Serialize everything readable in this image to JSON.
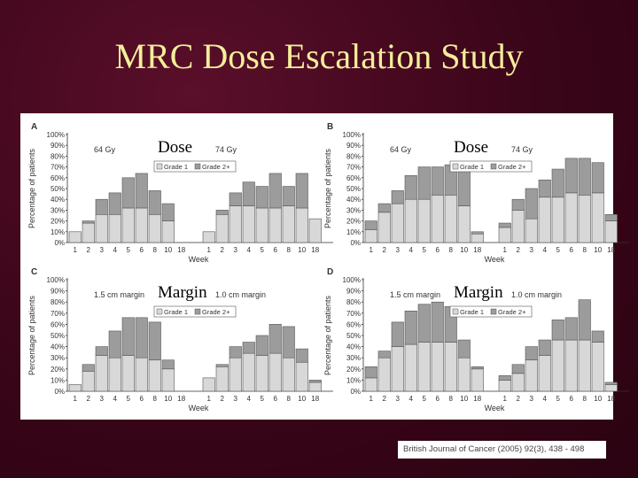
{
  "title": "MRC Dose Escalation Study",
  "citation": "British Journal of Cancer (2005) 92(3), 438 - 498",
  "legend_labels": [
    "Grade 1",
    "Grade 2+"
  ],
  "colors": {
    "grade1": "#d8d8d8",
    "grade2": "#9c9c9c"
  },
  "chart_data": [
    {
      "type": "bar",
      "panel": "A",
      "overlay": "Dose",
      "ylabel": "Percentage of patients",
      "xlabel": "Week",
      "ylim": [
        0,
        100
      ],
      "yticks": [
        "0%",
        "10%",
        "20%",
        "30%",
        "40%",
        "50%",
        "60%",
        "70%",
        "80%",
        "90%",
        "100%"
      ],
      "groups": [
        {
          "label": "64 Gy",
          "categories": [
            "1",
            "2",
            "3",
            "4",
            "5",
            "6",
            "8",
            "10",
            "18"
          ],
          "grade1": [
            10,
            18,
            26,
            26,
            32,
            32,
            26,
            20,
            0
          ],
          "grade2": [
            0,
            2,
            14,
            20,
            28,
            32,
            22,
            16,
            0
          ]
        },
        {
          "label": "74 Gy",
          "categories": [
            "1",
            "2",
            "3",
            "4",
            "5",
            "6",
            "8",
            "10",
            "18"
          ],
          "grade1": [
            10,
            26,
            34,
            34,
            32,
            32,
            34,
            32,
            22
          ],
          "grade2": [
            0,
            4,
            12,
            22,
            20,
            32,
            18,
            32,
            0
          ]
        }
      ]
    },
    {
      "type": "bar",
      "panel": "B",
      "overlay": "Dose",
      "ylabel": "Percentage of patients",
      "xlabel": "Week",
      "ylim": [
        0,
        100
      ],
      "yticks": [
        "0%",
        "10%",
        "20%",
        "30%",
        "40%",
        "50%",
        "60%",
        "70%",
        "80%",
        "90%",
        "100%"
      ],
      "groups": [
        {
          "label": "64 Gy",
          "categories": [
            "1",
            "2",
            "3",
            "4",
            "5",
            "6",
            "8",
            "10",
            "18"
          ],
          "grade1": [
            12,
            28,
            36,
            40,
            40,
            44,
            44,
            34,
            8
          ],
          "grade2": [
            8,
            8,
            12,
            22,
            30,
            26,
            28,
            34,
            2
          ]
        },
        {
          "label": "74 Gy",
          "categories": [
            "1",
            "2",
            "3",
            "4",
            "5",
            "6",
            "8",
            "10",
            "18"
          ],
          "grade1": [
            14,
            30,
            22,
            42,
            42,
            46,
            44,
            46,
            20
          ],
          "grade2": [
            4,
            10,
            28,
            16,
            26,
            32,
            34,
            28,
            6
          ]
        }
      ]
    },
    {
      "type": "bar",
      "panel": "C",
      "overlay": "Margin",
      "ylabel": "Percentage of patients",
      "xlabel": "Week",
      "ylim": [
        0,
        100
      ],
      "yticks": [
        "0%",
        "10%",
        "20%",
        "30%",
        "40%",
        "50%",
        "60%",
        "70%",
        "80%",
        "90%",
        "100%"
      ],
      "groups": [
        {
          "label": "1.5 cm margin",
          "categories": [
            "1",
            "2",
            "3",
            "4",
            "5",
            "6",
            "8",
            "10",
            "18"
          ],
          "grade1": [
            6,
            18,
            32,
            30,
            32,
            30,
            28,
            20,
            0
          ],
          "grade2": [
            0,
            6,
            8,
            24,
            34,
            36,
            34,
            8,
            0
          ]
        },
        {
          "label": "1.0 cm margin",
          "categories": [
            "1",
            "2",
            "3",
            "4",
            "5",
            "6",
            "8",
            "10",
            "18"
          ],
          "grade1": [
            12,
            22,
            30,
            34,
            32,
            34,
            30,
            26,
            8
          ],
          "grade2": [
            0,
            2,
            10,
            10,
            18,
            26,
            28,
            12,
            2
          ]
        }
      ]
    },
    {
      "type": "bar",
      "panel": "D",
      "overlay": "Margin",
      "ylabel": "Percentage of patients",
      "xlabel": "Week",
      "ylim": [
        0,
        100
      ],
      "yticks": [
        "0%",
        "10%",
        "20%",
        "30%",
        "40%",
        "50%",
        "60%",
        "70%",
        "80%",
        "90%",
        "100%"
      ],
      "groups": [
        {
          "label": "1.5 cm margin",
          "categories": [
            "1",
            "2",
            "3",
            "4",
            "5",
            "6",
            "8",
            "10",
            "18"
          ],
          "grade1": [
            12,
            30,
            40,
            42,
            44,
            44,
            44,
            30,
            20
          ],
          "grade2": [
            10,
            6,
            22,
            30,
            34,
            36,
            32,
            16,
            2
          ]
        },
        {
          "label": "1.0 cm margin",
          "categories": [
            "1",
            "2",
            "3",
            "4",
            "5",
            "6",
            "8",
            "10",
            "18"
          ],
          "grade1": [
            10,
            16,
            28,
            32,
            46,
            46,
            46,
            44,
            6
          ],
          "grade2": [
            4,
            8,
            12,
            14,
            18,
            20,
            36,
            10,
            2
          ]
        }
      ]
    }
  ]
}
